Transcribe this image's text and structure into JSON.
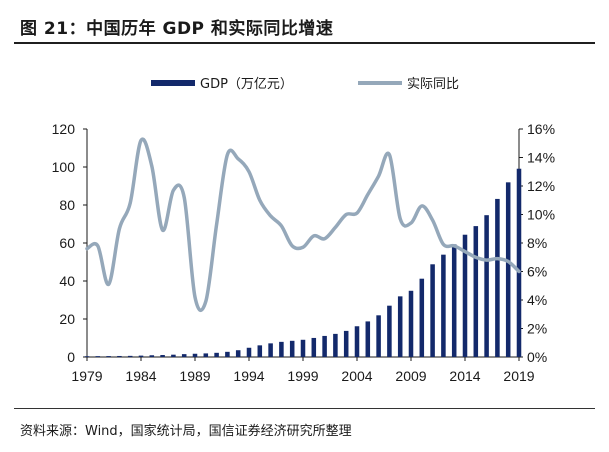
{
  "header": {
    "title": "图 21：中国历年 GDP 和实际同比增速"
  },
  "source": {
    "text": "资料来源：Wind，国家统计局，国信证券经济研究所整理"
  },
  "colors": {
    "bar": "#13296b",
    "line": "#95a8ba",
    "axis": "#1a1a1a"
  },
  "chart_data": {
    "type": "bar+line",
    "x": [
      1979,
      1980,
      1981,
      1982,
      1983,
      1984,
      1985,
      1986,
      1987,
      1988,
      1989,
      1990,
      1991,
      1992,
      1993,
      1994,
      1995,
      1996,
      1997,
      1998,
      1999,
      2000,
      2001,
      2002,
      2003,
      2004,
      2005,
      2006,
      2007,
      2008,
      2009,
      2010,
      2011,
      2012,
      2013,
      2014,
      2015,
      2016,
      2017,
      2018,
      2019
    ],
    "x_tick_labels": [
      "1979",
      "1984",
      "1989",
      "1994",
      "1999",
      "2004",
      "2009",
      "2014",
      "2019"
    ],
    "series": [
      {
        "name": "GDP（万亿元）",
        "kind": "bar",
        "axis": "left",
        "values": [
          0.41,
          0.46,
          0.49,
          0.54,
          0.6,
          0.73,
          0.91,
          1.04,
          1.22,
          1.51,
          1.71,
          1.89,
          2.2,
          2.72,
          3.57,
          4.86,
          6.13,
          7.18,
          7.97,
          8.52,
          9.06,
          10.03,
          11.09,
          12.17,
          13.74,
          16.18,
          18.73,
          21.94,
          27.01,
          31.92,
          34.85,
          41.21,
          48.79,
          53.86,
          59.3,
          64.36,
          68.89,
          74.64,
          83.2,
          91.93,
          99.09
        ]
      },
      {
        "name": "实际同比",
        "kind": "line",
        "axis": "right",
        "values": [
          7.6,
          7.8,
          5.1,
          9.0,
          10.8,
          15.2,
          13.4,
          8.9,
          11.7,
          11.2,
          4.2,
          3.9,
          9.3,
          14.2,
          13.9,
          13.0,
          11.0,
          9.9,
          9.2,
          7.8,
          7.7,
          8.5,
          8.3,
          9.1,
          10.0,
          10.1,
          11.4,
          12.7,
          14.2,
          9.7,
          9.4,
          10.6,
          9.6,
          7.9,
          7.8,
          7.4,
          7.0,
          6.8,
          6.9,
          6.7,
          6.0
        ]
      }
    ],
    "y_left": {
      "ylim": [
        0,
        120
      ],
      "ticks": [
        "0",
        "20",
        "40",
        "60",
        "80",
        "100",
        "120"
      ]
    },
    "y_right": {
      "ylim": [
        0,
        16
      ],
      "ticks": [
        "0%",
        "2%",
        "4%",
        "6%",
        "8%",
        "10%",
        "12%",
        "14%",
        "16%"
      ]
    },
    "legend_placement": "top-center",
    "grid": false
  }
}
